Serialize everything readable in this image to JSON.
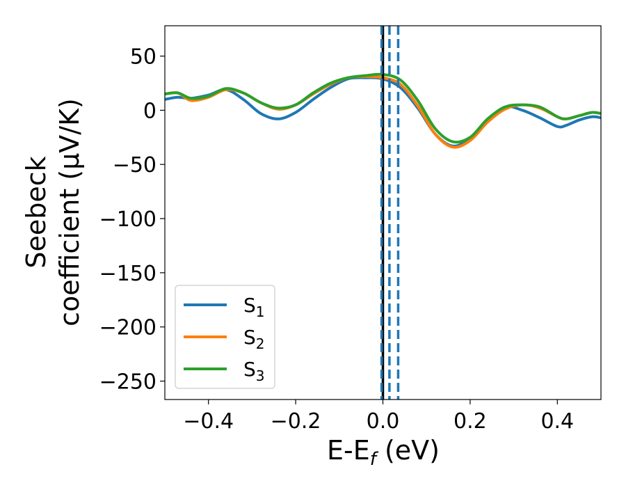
{
  "chart_data": {
    "type": "line",
    "title": "",
    "xlabel_main": "E-E",
    "xlabel_sub": "f",
    "xlabel_unit": " (eV)",
    "ylabel_line1": "Seebeck",
    "ylabel_line2": "coefficient  (μV/K)",
    "xlim": [
      -0.5,
      0.5
    ],
    "ylim": [
      -267,
      78
    ],
    "xticks": [
      -0.4,
      -0.2,
      0.0,
      0.2,
      0.4
    ],
    "xtick_labels": [
      "−0.4",
      "−0.2",
      "0.0",
      "0.2",
      "0.4"
    ],
    "yticks": [
      50,
      0,
      -50,
      -100,
      -150,
      -200,
      -250
    ],
    "ytick_labels": [
      "50",
      "0",
      "−50",
      "−100",
      "−150",
      "−200",
      "−250"
    ],
    "grid": false,
    "legend_position": "bottom-left",
    "vlines": [
      {
        "x": 0.0,
        "style": "solid",
        "color": "#000000"
      },
      {
        "x": -0.003,
        "style": "dashed",
        "color": "#1f77b4"
      },
      {
        "x": 0.015,
        "style": "dashed",
        "color": "#1f77b4"
      },
      {
        "x": 0.035,
        "style": "dashed",
        "color": "#1f77b4"
      }
    ],
    "series": [
      {
        "name": "S",
        "sub": "1",
        "color": "#1f77b4",
        "x": [
          -0.5,
          -0.47,
          -0.44,
          -0.4,
          -0.36,
          -0.32,
          -0.28,
          -0.24,
          -0.2,
          -0.16,
          -0.12,
          -0.08,
          -0.04,
          0.0,
          0.04,
          0.08,
          0.12,
          0.16,
          0.2,
          0.24,
          0.28,
          0.32,
          0.36,
          0.4,
          0.42,
          0.45,
          0.48,
          0.5
        ],
        "values": [
          10,
          12,
          11,
          14,
          19,
          10,
          -3,
          -8,
          -2,
          10,
          21,
          29,
          30,
          29,
          21,
          2,
          -22,
          -33,
          -26,
          -9,
          3,
          0,
          -7,
          -15,
          -14,
          -9,
          -6,
          -7
        ]
      },
      {
        "name": "S",
        "sub": "2",
        "color": "#ff7f0e",
        "x": [
          -0.5,
          -0.47,
          -0.44,
          -0.4,
          -0.36,
          -0.32,
          -0.28,
          -0.24,
          -0.2,
          -0.16,
          -0.12,
          -0.08,
          -0.04,
          0.0,
          0.04,
          0.08,
          0.12,
          0.16,
          0.2,
          0.24,
          0.28,
          0.32,
          0.36,
          0.4,
          0.42,
          0.45,
          0.48,
          0.5
        ],
        "values": [
          15,
          16,
          9,
          12,
          19,
          16,
          7,
          1,
          5,
          15,
          24,
          30,
          31,
          30,
          24,
          4,
          -22,
          -34,
          -28,
          -11,
          1,
          5,
          2,
          -6,
          -8,
          -5,
          -2,
          -3
        ]
      },
      {
        "name": "S",
        "sub": "3",
        "color": "#2ca02c",
        "x": [
          -0.5,
          -0.47,
          -0.44,
          -0.4,
          -0.36,
          -0.32,
          -0.28,
          -0.24,
          -0.2,
          -0.16,
          -0.12,
          -0.08,
          -0.04,
          0.0,
          0.04,
          0.08,
          0.12,
          0.16,
          0.2,
          0.24,
          0.28,
          0.32,
          0.36,
          0.4,
          0.42,
          0.45,
          0.48,
          0.5
        ],
        "values": [
          15,
          16,
          11,
          13,
          20,
          16,
          7,
          2,
          5,
          16,
          25,
          30,
          32,
          33,
          28,
          9,
          -17,
          -29,
          -25,
          -8,
          3,
          5,
          3,
          -6,
          -8,
          -5,
          -2,
          -3
        ]
      }
    ]
  }
}
